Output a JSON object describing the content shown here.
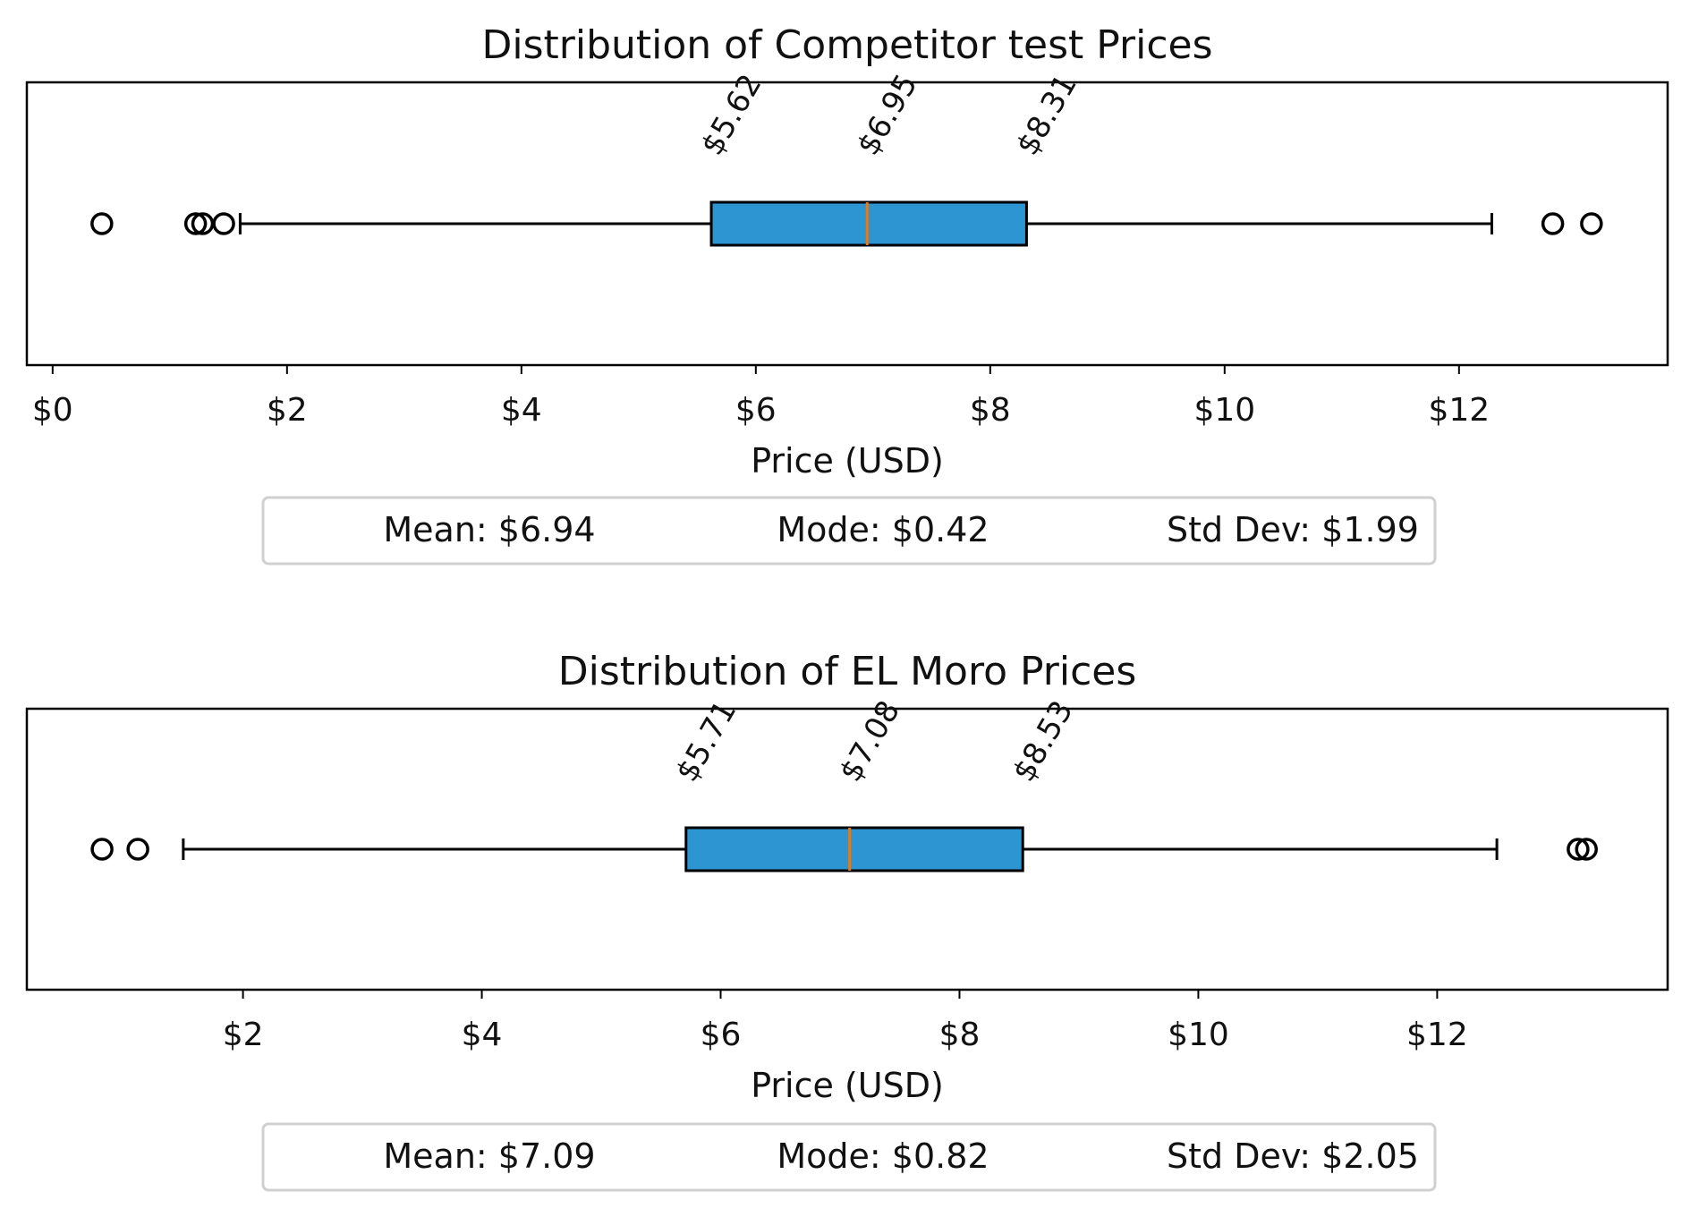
{
  "chart_data": [
    {
      "type": "box",
      "title": "Distribution of Competitor test Prices",
      "xlabel": "Price (USD)",
      "xlim": [
        -0.22,
        13.78
      ],
      "xticks": [
        0,
        2,
        4,
        6,
        8,
        10,
        12
      ],
      "xtick_labels": [
        "$0",
        "$2",
        "$4",
        "$6",
        "$8",
        "$10",
        "$12"
      ],
      "box": {
        "whisker_low": 1.6,
        "q1": 5.62,
        "median": 6.95,
        "q3": 8.31,
        "whisker_high": 12.28,
        "outliers": [
          0.42,
          1.22,
          1.28,
          1.46,
          12.8,
          13.13
        ]
      },
      "quartile_labels": [
        "$5.62",
        "$6.95",
        "$8.31"
      ],
      "stats": [
        "Mean: $6.94",
        "Mode: $0.42",
        "Std Dev: $1.99"
      ],
      "box_color": "#2e95d3",
      "median_color": "#e07b1f",
      "grid": false
    },
    {
      "type": "box",
      "title": "Distribution of EL Moro Prices",
      "xlabel": "Price (USD)",
      "xlim": [
        0.19,
        13.93
      ],
      "xticks": [
        2,
        4,
        6,
        8,
        10,
        12
      ],
      "xtick_labels": [
        "$2",
        "$4",
        "$6",
        "$8",
        "$10",
        "$12"
      ],
      "box": {
        "whisker_low": 1.5,
        "q1": 5.71,
        "median": 7.08,
        "q3": 8.53,
        "whisker_high": 12.5,
        "outliers": [
          0.82,
          1.12,
          13.18,
          13.25
        ]
      },
      "quartile_labels": [
        "$5.71",
        "$7.08",
        "$8.53"
      ],
      "stats": [
        "Mean: $7.09",
        "Mode: $0.82",
        "Std Dev: $2.05"
      ],
      "box_color": "#2e95d3",
      "median_color": "#e07b1f",
      "grid": false
    }
  ]
}
